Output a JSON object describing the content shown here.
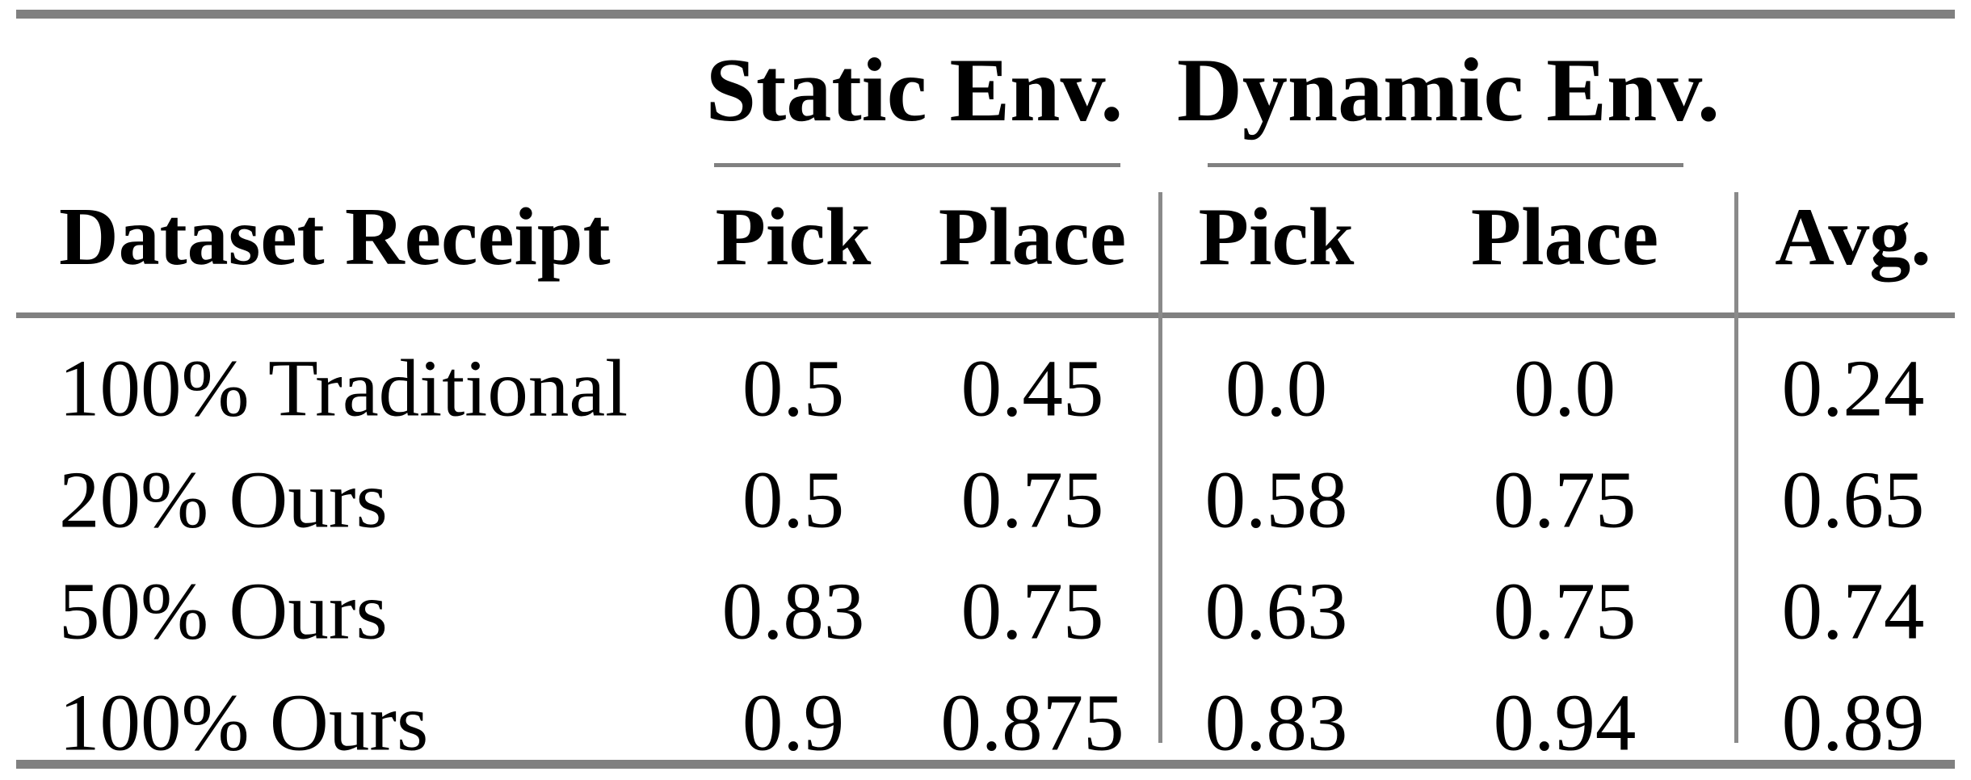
{
  "table": {
    "groups": [
      {
        "label": "Static Env."
      },
      {
        "label": "Dynamic Env."
      }
    ],
    "header": {
      "row_label": "Dataset Receipt",
      "static_pick": "Pick",
      "static_place": "Place",
      "dynamic_pick": "Pick",
      "dynamic_place": "Place",
      "avg": "Avg."
    },
    "rows": [
      {
        "label": "100% Traditional",
        "static_pick": "0.5",
        "static_place": "0.45",
        "dynamic_pick": "0.0",
        "dynamic_place": "0.0",
        "avg": "0.24"
      },
      {
        "label": "20% Ours",
        "static_pick": "0.5",
        "static_place": "0.75",
        "dynamic_pick": "0.58",
        "dynamic_place": "0.75",
        "avg": "0.65"
      },
      {
        "label": "50% Ours",
        "static_pick": "0.83",
        "static_place": "0.75",
        "dynamic_pick": "0.63",
        "dynamic_place": "0.75",
        "avg": "0.74"
      },
      {
        "label": "100% Ours",
        "static_pick": "0.9",
        "static_place": "0.875",
        "dynamic_pick": "0.83",
        "dynamic_place": "0.94",
        "avg": "0.89"
      }
    ],
    "colors": {
      "rule": "#808080",
      "text": "#000000",
      "background": "#ffffff"
    }
  },
  "chart_data": {
    "type": "table",
    "column_groups": [
      "Static Env.",
      "Dynamic Env."
    ],
    "columns": [
      "Dataset Receipt",
      "Static Env. Pick",
      "Static Env. Place",
      "Dynamic Env. Pick",
      "Dynamic Env. Place",
      "Avg."
    ],
    "rows": [
      [
        "100% Traditional",
        0.5,
        0.45,
        0.0,
        0.0,
        0.24
      ],
      [
        "20% Ours",
        0.5,
        0.75,
        0.58,
        0.75,
        0.65
      ],
      [
        "50% Ours",
        0.83,
        0.75,
        0.63,
        0.75,
        0.74
      ],
      [
        "100% Ours",
        0.9,
        0.875,
        0.83,
        0.94,
        0.89
      ]
    ]
  }
}
